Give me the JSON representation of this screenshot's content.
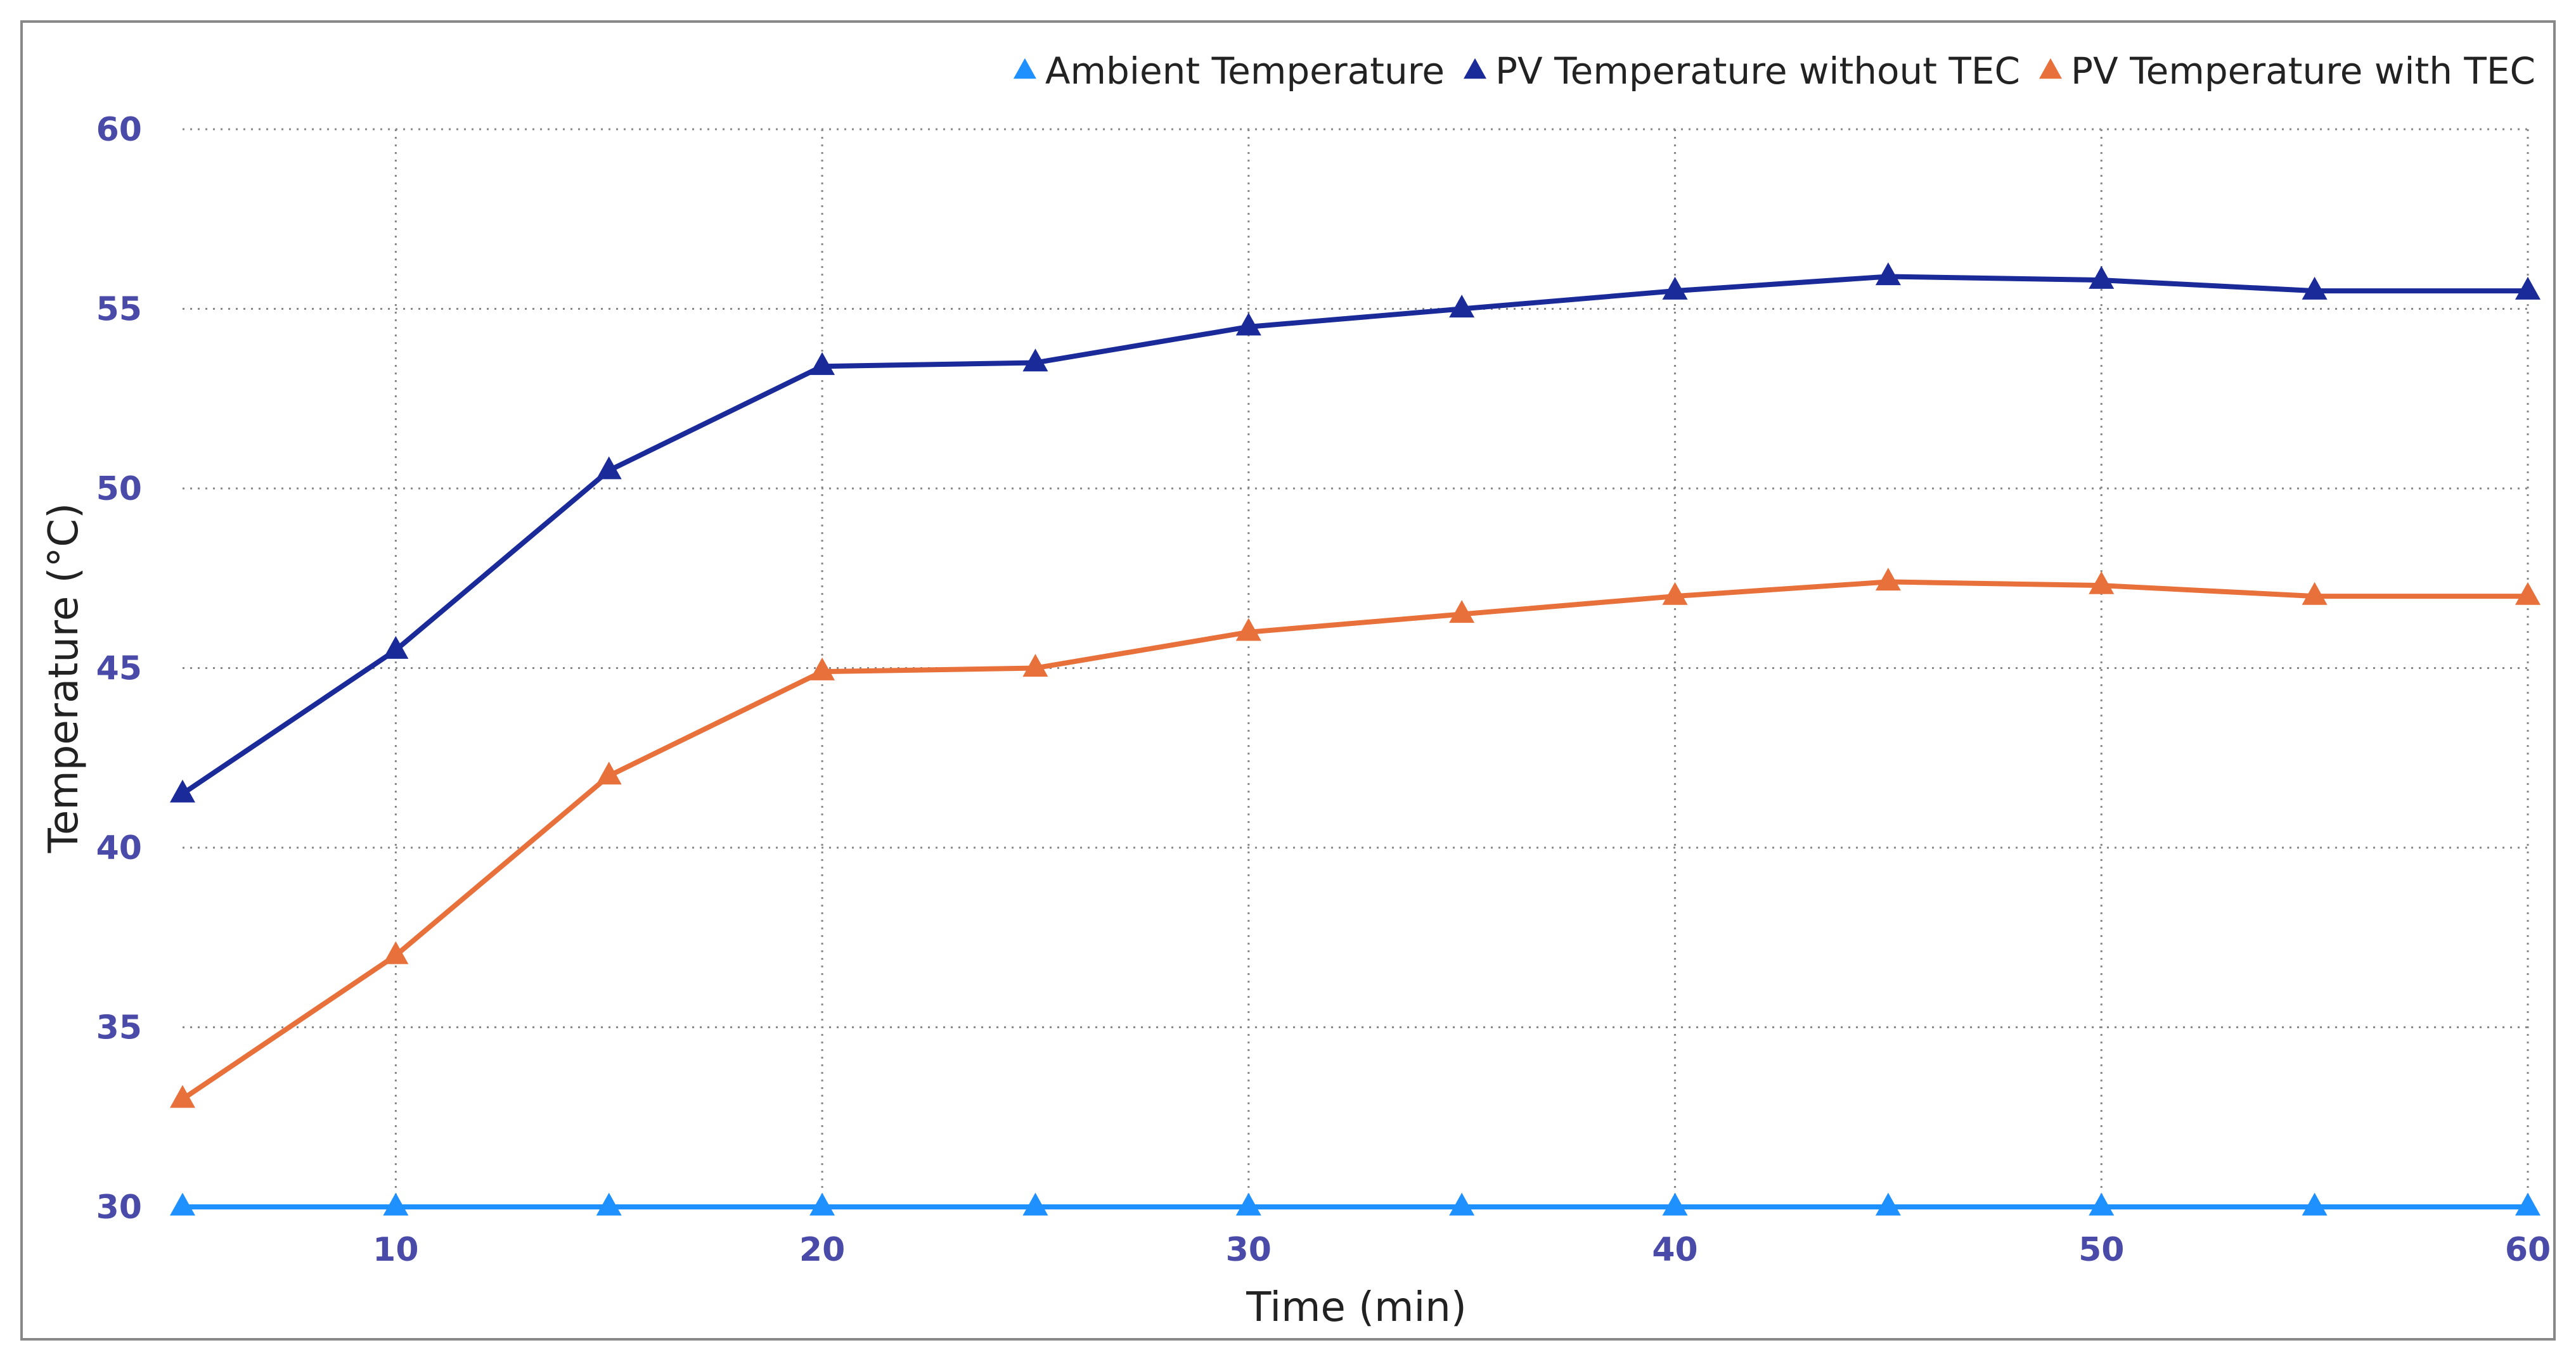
{
  "chart_data": {
    "type": "line",
    "title": "",
    "xlabel": "Time (min)",
    "ylabel": "Temperature (°C)",
    "x": [
      5,
      10,
      15,
      20,
      25,
      30,
      35,
      40,
      45,
      50,
      55,
      60
    ],
    "xlim": [
      5,
      60
    ],
    "ylim": [
      30,
      60
    ],
    "x_ticks": [
      10,
      20,
      30,
      40,
      50,
      60
    ],
    "y_ticks": [
      30,
      35,
      40,
      45,
      50,
      55,
      60
    ],
    "grid": true,
    "legend_position": "top-right",
    "marker": "triangle",
    "series": [
      {
        "name": "Ambient Temperature",
        "color": "#1e90ff",
        "values": [
          30,
          30,
          30,
          30,
          30,
          30,
          30,
          30,
          30,
          30,
          30,
          30
        ]
      },
      {
        "name": "PV Temperature without TEC",
        "color": "#1a2a99",
        "values": [
          41.5,
          45.5,
          50.5,
          53.4,
          53.5,
          54.5,
          55.0,
          55.5,
          55.9,
          55.8,
          55.5,
          55.5
        ]
      },
      {
        "name": "PV Temperature with TEC",
        "color": "#e8703a",
        "values": [
          33.0,
          37.0,
          42.0,
          44.9,
          45.0,
          46.0,
          46.5,
          47.0,
          47.4,
          47.3,
          47.0,
          47.0
        ]
      }
    ],
    "tick_color": "#4a4aa8",
    "grid_color": "#888888",
    "frame_color": "#888888"
  }
}
